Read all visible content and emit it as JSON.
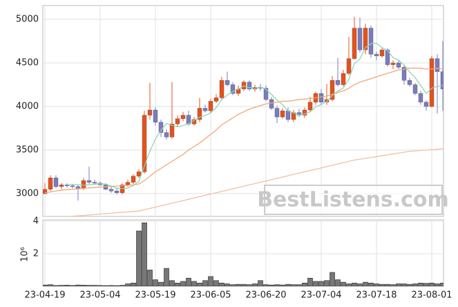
{
  "chart_data": {
    "type": "candlestick",
    "categories": [
      "23-04-19",
      null,
      null,
      null,
      null,
      null,
      null,
      null,
      null,
      null,
      "23-05-04",
      null,
      null,
      null,
      null,
      null,
      null,
      null,
      null,
      null,
      "23-05-19",
      null,
      null,
      null,
      null,
      null,
      null,
      null,
      null,
      null,
      "23-06-05",
      null,
      null,
      null,
      null,
      null,
      null,
      null,
      null,
      null,
      "23-06-20",
      null,
      null,
      null,
      null,
      null,
      null,
      null,
      null,
      null,
      "23-07-04",
      null,
      null,
      null,
      null,
      null,
      null,
      null,
      null,
      null,
      "23-07-18",
      null,
      null,
      null,
      null,
      null,
      null,
      null,
      null,
      null,
      "23-08-01",
      null,
      null
    ],
    "open": [
      3000,
      3050,
      3180,
      3080,
      3100,
      3090,
      3080,
      3060,
      3150,
      3130,
      3120,
      3100,
      3050,
      3030,
      3010,
      3100,
      3130,
      3200,
      3250,
      3900,
      3960,
      3820,
      3700,
      3650,
      3800,
      3860,
      3900,
      3800,
      3850,
      3980,
      3950,
      4060,
      4100,
      4300,
      4250,
      4150,
      4200,
      4280,
      4200,
      4220,
      4210,
      4080,
      3980,
      3880,
      3950,
      3850,
      3930,
      3900,
      3960,
      4050,
      4150,
      4050,
      4080,
      4300,
      4250,
      4380,
      4550,
      4900,
      4650,
      4900,
      4600,
      4580,
      4650,
      4480,
      4500,
      4450,
      4300,
      4250,
      4150,
      4050,
      4000,
      4550,
      4400
    ],
    "high": [
      3120,
      3210,
      3210,
      3120,
      3120,
      3110,
      3100,
      3180,
      3310,
      3160,
      3140,
      3120,
      3080,
      3060,
      3120,
      3160,
      3220,
      3280,
      3950,
      4270,
      3990,
      3850,
      3740,
      4280,
      3900,
      3940,
      3950,
      3880,
      4100,
      4020,
      4090,
      4140,
      4340,
      4400,
      4280,
      4240,
      4300,
      4300,
      4250,
      4260,
      4240,
      4110,
      4010,
      3980,
      3990,
      3960,
      3970,
      3990,
      4110,
      4170,
      4200,
      4260,
      4350,
      4560,
      4420,
      4800,
      5030,
      5020,
      4950,
      4930,
      4630,
      4680,
      4670,
      4530,
      4540,
      4470,
      4330,
      4270,
      4180,
      4070,
      4580,
      4600,
      4750
    ],
    "low": [
      2990,
      3030,
      3060,
      3050,
      3070,
      3060,
      2920,
      3040,
      3110,
      3100,
      3090,
      3040,
      3010,
      2990,
      2990,
      3080,
      3110,
      3180,
      3230,
      3850,
      3780,
      3650,
      3620,
      3630,
      3770,
      3830,
      3780,
      3780,
      3820,
      3930,
      3920,
      4040,
      4080,
      4230,
      4130,
      4120,
      4180,
      4180,
      4170,
      4180,
      4060,
      3960,
      3810,
      3860,
      3820,
      3820,
      3880,
      3870,
      3940,
      4020,
      4020,
      4020,
      4060,
      4230,
      4230,
      4360,
      4540,
      4620,
      4600,
      4560,
      4530,
      4560,
      4460,
      4430,
      4430,
      4250,
      4230,
      4130,
      4020,
      3950,
      3990,
      3920,
      3950
    ],
    "close": [
      3050,
      3180,
      3080,
      3100,
      3090,
      3080,
      3060,
      3150,
      3130,
      3120,
      3100,
      3050,
      3030,
      3010,
      3100,
      3130,
      3200,
      3250,
      3900,
      3960,
      3820,
      3700,
      3650,
      3800,
      3860,
      3900,
      3800,
      3850,
      3980,
      3950,
      4060,
      4100,
      4300,
      4250,
      4150,
      4200,
      4280,
      4200,
      4220,
      4210,
      4080,
      3980,
      3880,
      3950,
      3850,
      3930,
      3900,
      3960,
      4050,
      4150,
      4050,
      4080,
      4300,
      4250,
      4380,
      4550,
      4900,
      4650,
      4900,
      4600,
      4580,
      4650,
      4480,
      4500,
      4450,
      4300,
      4250,
      4150,
      4050,
      4000,
      4550,
      4400,
      4200
    ],
    "up_color": "#e8501a",
    "down_color": "#7a7cc0",
    "series": [
      {
        "color": "#8fd4b4",
        "values": [
          null,
          null,
          null,
          null,
          3100,
          3106,
          3102,
          3096,
          3102,
          3108,
          3112,
          3110,
          3086,
          3062,
          3058,
          3064,
          3094,
          3138,
          3316,
          3488,
          3626,
          3726,
          3806,
          3786,
          3766,
          3782,
          3802,
          3842,
          3878,
          3896,
          3928,
          3988,
          4078,
          4132,
          4172,
          4200,
          4236,
          4216,
          4210,
          4222,
          4198,
          4138,
          4074,
          4020,
          3948,
          3928,
          3902,
          3914,
          3938,
          3998,
          4022,
          4058,
          4126,
          4176,
          4212,
          4312,
          4492,
          4546,
          4676,
          4720,
          4726,
          4676,
          4642,
          4562,
          4532,
          4476,
          4396,
          4330,
          4240,
          4150,
          4210,
          4230,
          4240
        ]
      },
      {
        "color": "#f0a878",
        "values": [
          3010,
          3020,
          3030,
          3040,
          3045,
          3050,
          3055,
          3060,
          3065,
          3070,
          3075,
          3080,
          3085,
          3085,
          3090,
          3095,
          3100,
          3110,
          3150,
          3200,
          3250,
          3290,
          3330,
          3370,
          3410,
          3450,
          3500,
          3540,
          3580,
          3630,
          3680,
          3730,
          3790,
          3830,
          3870,
          3910,
          3940,
          3970,
          3990,
          4010,
          4030,
          4040,
          4050,
          4060,
          4060,
          4070,
          4080,
          4085,
          4090,
          4100,
          4110,
          4120,
          4140,
          4160,
          4180,
          4210,
          4250,
          4280,
          4300,
          4320,
          4340,
          4360,
          4380,
          4400,
          4420,
          4430,
          4440,
          4440,
          4440,
          4430,
          4430,
          4440,
          4430
        ]
      },
      {
        "color": "#f0c0a0",
        "values": [
          null,
          null,
          null,
          null,
          null,
          2740,
          2745,
          2750,
          2755,
          2760,
          2765,
          2770,
          2775,
          2780,
          2785,
          2790,
          2795,
          2800,
          2815,
          2830,
          2845,
          2860,
          2875,
          2890,
          2905,
          2920,
          2935,
          2950,
          2965,
          2980,
          2995,
          3010,
          3025,
          3040,
          3055,
          3070,
          3085,
          3100,
          3115,
          3130,
          3145,
          3160,
          3175,
          3190,
          3205,
          3220,
          3235,
          3250,
          3265,
          3280,
          3295,
          3310,
          3325,
          3340,
          3355,
          3370,
          3385,
          3395,
          3405,
          3415,
          3425,
          3435,
          3445,
          3455,
          3465,
          3475,
          3485,
          3490,
          3495,
          3500,
          3505,
          3510,
          3515
        ]
      }
    ],
    "ylim": [
      2738,
      5159
    ],
    "yticks": [
      3000,
      3500,
      4000,
      4500,
      5000
    ],
    "grid": true,
    "watermark": "BestListens.com",
    "volume": {
      "type": "bar",
      "color": "#777777",
      "ylabel": "10⁶",
      "ylim": [
        0,
        4.08
      ],
      "yticks": [
        2,
        4
      ],
      "values": [
        0.08,
        0.1,
        0.05,
        0.06,
        0.07,
        0.05,
        0.08,
        0.07,
        0.06,
        0.06,
        0.05,
        0.04,
        0.05,
        0.04,
        0.06,
        0.15,
        0.2,
        3.4,
        3.9,
        1.0,
        0.4,
        0.25,
        1.1,
        0.35,
        0.2,
        0.3,
        0.5,
        0.3,
        0.2,
        0.35,
        0.6,
        0.35,
        0.2,
        0.15,
        0.1,
        0.12,
        0.12,
        0.1,
        0.15,
        0.35,
        0.1,
        0.08,
        0.1,
        0.08,
        0.12,
        0.1,
        0.1,
        0.2,
        0.5,
        0.3,
        0.3,
        0.35,
        0.85,
        0.4,
        0.25,
        0.15,
        0.2,
        0.15,
        0.25,
        0.2,
        0.15,
        0.12,
        0.12,
        0.1,
        0.15,
        0.15,
        0.12,
        0.15,
        0.2,
        0.18,
        0.2,
        0.15,
        0.2
      ]
    }
  }
}
